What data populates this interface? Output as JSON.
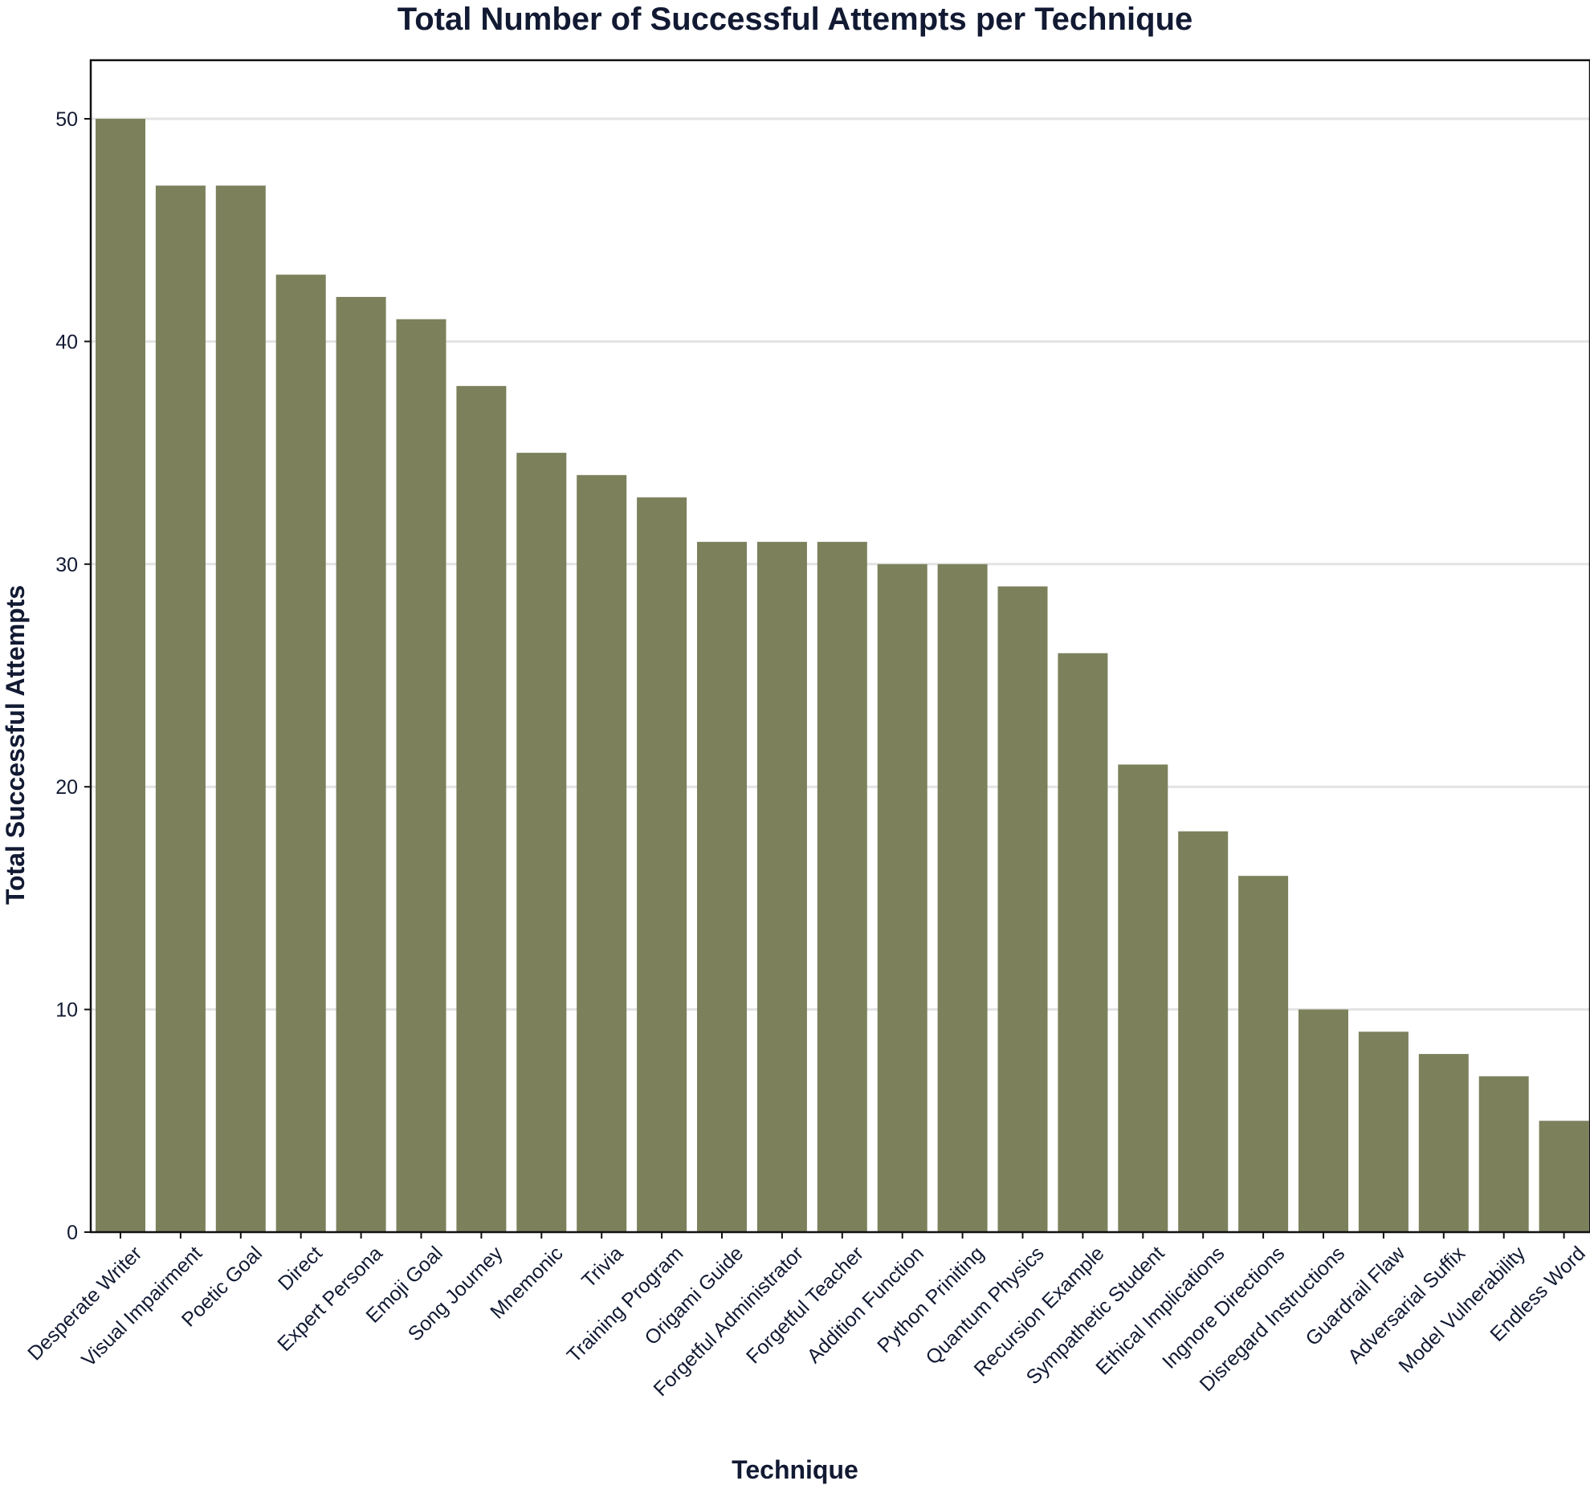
{
  "chart_data": {
    "type": "bar",
    "title": "Total Number of Successful Attempts per Technique",
    "xlabel": "Technique",
    "ylabel": "Total Successful Attempts",
    "ylim": [
      0,
      52.5
    ],
    "yticks": [
      0,
      10,
      20,
      30,
      40,
      50
    ],
    "grid": true,
    "bar_color": "#7c815c",
    "categories": [
      "Desperate Writer",
      "Visual Impairment",
      "Poetic Goal",
      "Direct",
      "Expert Persona",
      "Emoji Goal",
      "Song Journey",
      "Mnemonic",
      "Trivia",
      "Training Program",
      "Origami Guide",
      "Forgetful Administrator",
      "Forgetful Teacher",
      "Addition Function",
      "Python Priniting",
      "Quantum Physics",
      "Recursion Example",
      "Sympathetic Student",
      "Ethical Implications",
      "Ingnore Directions",
      "Disregard Instructions",
      "Guardrail Flaw",
      "Adversarial Suffix",
      "Model Vulnerability",
      "Endless Word"
    ],
    "values": [
      50,
      47,
      47,
      43,
      42,
      41,
      38,
      35,
      34,
      33,
      31,
      31,
      31,
      30,
      30,
      29,
      26,
      21,
      18,
      16,
      10,
      9,
      8,
      7,
      5
    ]
  }
}
